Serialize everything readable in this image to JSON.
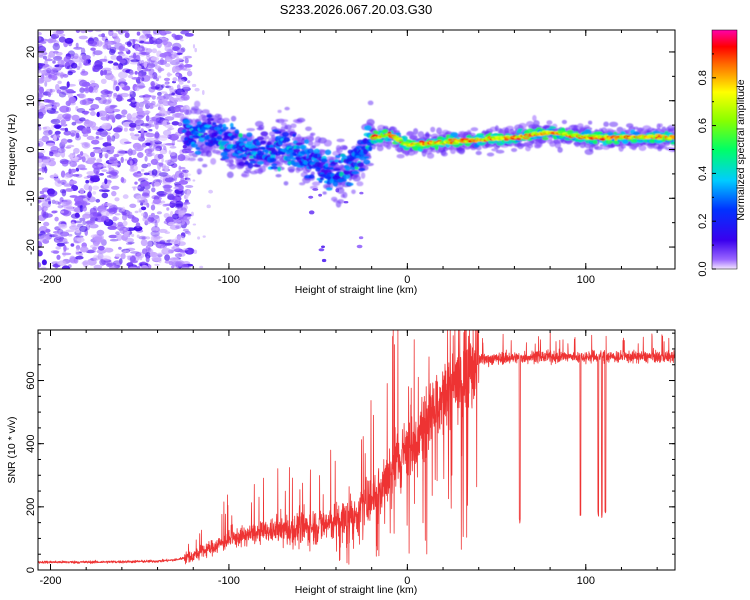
{
  "chart_data": [
    {
      "type": "heatmap",
      "title": "S233.2026.067.20.03.G30",
      "xlabel": "Height of straight line (km)",
      "ylabel": "Frequency (Hz)",
      "xlim": [
        -207,
        150
      ],
      "ylim": [
        -24.5,
        24.5
      ],
      "xticks": [
        -200,
        -100,
        0,
        100
      ],
      "xtick_labels": [
        "-200",
        "-100",
        "0",
        "100"
      ],
      "yticks": [
        -20,
        -10,
        0,
        10,
        20
      ],
      "ytick_labels": [
        "-20",
        "-10",
        "0",
        "10",
        "20"
      ],
      "colorbar": {
        "label": "Normalized spectral amplitude",
        "range": [
          0,
          1
        ],
        "ticks": [
          0.0,
          0.2,
          0.4,
          0.6,
          0.8
        ],
        "tick_labels": [
          "0.0",
          "0.2",
          "0.4",
          "0.6",
          "0.8"
        ]
      },
      "ridge": {
        "description": "dominant spectral ridge (frequency in Hz vs height in km)",
        "x": [
          -120,
          -110,
          -100,
          -90,
          -80,
          -70,
          -60,
          -50,
          -40,
          -30,
          -20,
          -10,
          0,
          20,
          40,
          60,
          80,
          100,
          120,
          150
        ],
        "y": [
          3,
          3.5,
          1.5,
          0,
          -1,
          1,
          -1,
          -3,
          -5,
          -3,
          2.5,
          3,
          1,
          1.5,
          2,
          2.5,
          3.5,
          2.5,
          2.5,
          2.5
        ]
      }
    },
    {
      "type": "line",
      "xlabel": "Height of straight line (km)",
      "ylabel": "SNR (10 * v/v)",
      "xlim": [
        -207,
        150
      ],
      "ylim": [
        0,
        760
      ],
      "xticks": [
        -200,
        -100,
        0,
        100
      ],
      "xtick_labels": [
        "-200",
        "-100",
        "0",
        "100"
      ],
      "yticks": [
        0,
        200,
        400,
        600
      ],
      "ytick_labels": [
        "0",
        "200",
        "400",
        "600"
      ],
      "series": [
        {
          "name": "SNR",
          "color": "#ee3333",
          "x": [
            -207,
            -180,
            -160,
            -140,
            -130,
            -120,
            -110,
            -100,
            -90,
            -80,
            -70,
            -60,
            -50,
            -40,
            -30,
            -25,
            -20,
            -15,
            -10,
            -5,
            0,
            5,
            10,
            15,
            20,
            25,
            30,
            35,
            40,
            50,
            60,
            70,
            80,
            90,
            100,
            110,
            120,
            130,
            140,
            150
          ],
          "values": [
            25,
            25,
            26,
            28,
            32,
            45,
            70,
            95,
            110,
            120,
            125,
            130,
            140,
            150,
            170,
            200,
            230,
            260,
            300,
            340,
            380,
            420,
            460,
            500,
            540,
            580,
            620,
            650,
            665,
            670,
            672,
            675,
            675,
            675,
            675,
            675,
            675,
            675,
            675,
            675
          ]
        }
      ],
      "dropouts": {
        "description": "narrow SNR dips visible above 40 km",
        "x": [
          63,
          97,
          107,
          109,
          111
        ],
        "values": [
          145,
          170,
          170,
          165,
          175
        ]
      }
    }
  ]
}
